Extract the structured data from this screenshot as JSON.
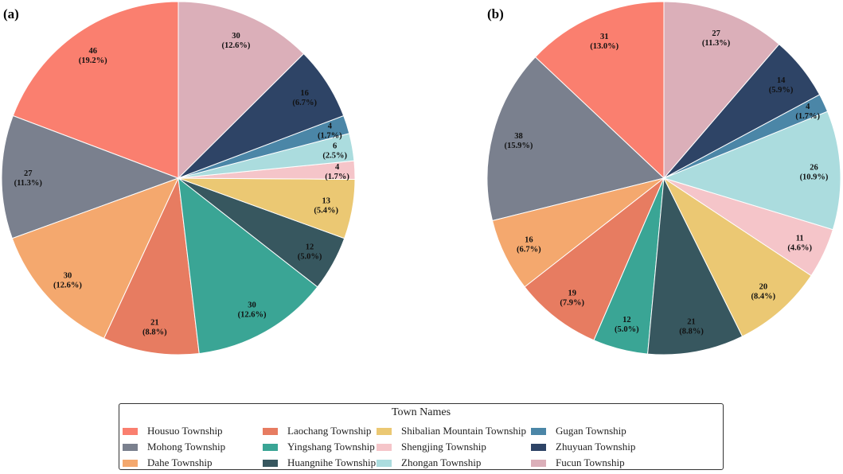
{
  "chart_data": {
    "type": "pie",
    "legend": {
      "title": "Town Names",
      "placement": "bottom-center"
    },
    "categories": [
      "Housuo Township",
      "Mohong Township",
      "Dahe Township",
      "Laochang Township",
      "Yingshang Township",
      "Huangnihe Township",
      "Shibalian Mountain Township",
      "Shengjing Township",
      "Zhongan Township",
      "Gugan Township",
      "Zhuyuan Township",
      "Fucun Township"
    ],
    "colors": [
      "#FA7F6F",
      "#7A808E",
      "#F4A86E",
      "#E77C61",
      "#3AA595",
      "#37575F",
      "#EBC873",
      "#F5C5C9",
      "#ABDCDE",
      "#4B86A7",
      "#2E4466",
      "#DBAFB9"
    ],
    "start_angle": "top",
    "direction": "counterclockwise",
    "charts": [
      {
        "panel": "(a)",
        "values": [
          46,
          27,
          30,
          21,
          30,
          12,
          13,
          4,
          6,
          4,
          16,
          30
        ],
        "labels": [
          "19.2%",
          "11.3%",
          "12.6%",
          "8.8%",
          "12.6%",
          "5.0%",
          "5.4%",
          "1.7%",
          "2.5%",
          "1.7%",
          "6.7%",
          "12.6%"
        ]
      },
      {
        "panel": "(b)",
        "values": [
          31,
          38,
          16,
          19,
          12,
          21,
          20,
          11,
          26,
          4,
          14,
          27
        ],
        "labels": [
          "13.0%",
          "15.9%",
          "6.7%",
          "7.9%",
          "5.0%",
          "8.8%",
          "8.4%",
          "4.6%",
          "10.9%",
          "1.7%",
          "5.9%",
          "11.3%"
        ]
      }
    ]
  }
}
